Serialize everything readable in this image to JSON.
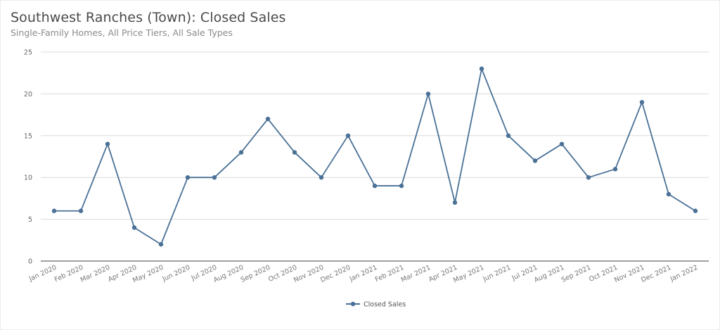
{
  "header": {
    "title": "Southwest Ranches (Town): Closed Sales",
    "subtitle": "Single-Family Homes, All Price Tiers, All Sale Types"
  },
  "legend": {
    "items": [
      {
        "label": "Closed Sales",
        "color": "#4a7196",
        "icon": "line-marker-icon"
      }
    ]
  },
  "colors": {
    "series": "#4a7196",
    "grid": "#dcdcdc",
    "axis": "#666666"
  },
  "chart_data": {
    "type": "line",
    "title": "Southwest Ranches (Town): Closed Sales",
    "subtitle": "Single-Family Homes, All Price Tiers, All Sale Types",
    "xlabel": "",
    "ylabel": "",
    "ylim": [
      0,
      25
    ],
    "yticks": [
      0,
      5,
      10,
      15,
      20,
      25
    ],
    "grid": true,
    "legend_position": "bottom",
    "categories": [
      "Jan 2020",
      "Feb 2020",
      "Mar 2020",
      "Apr 2020",
      "May 2020",
      "Jun 2020",
      "Jul 2020",
      "Aug 2020",
      "Sep 2020",
      "Oct 2020",
      "Nov 2020",
      "Dec 2020",
      "Jan 2021",
      "Feb 2021",
      "Mar 2021",
      "Apr 2021",
      "May 2021",
      "Jun 2021",
      "Jul 2021",
      "Aug 2021",
      "Sep 2021",
      "Oct 2021",
      "Nov 2021",
      "Dec 2021",
      "Jan 2022"
    ],
    "series": [
      {
        "name": "Closed Sales",
        "color": "#4a7196",
        "values": [
          6,
          6,
          14,
          4,
          2,
          10,
          10,
          13,
          17,
          13,
          10,
          15,
          9,
          9,
          20,
          7,
          23,
          15,
          12,
          14,
          10,
          11,
          19,
          8,
          6
        ]
      }
    ]
  }
}
